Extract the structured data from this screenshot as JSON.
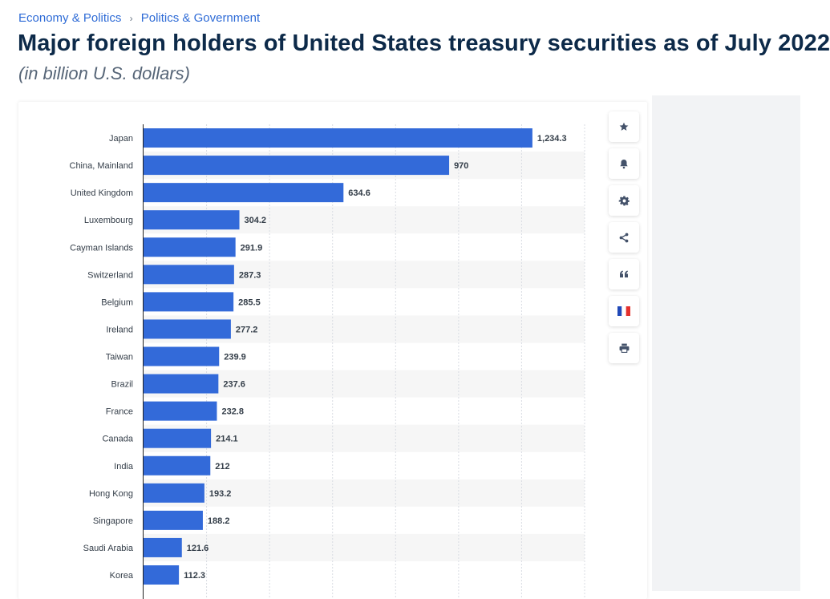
{
  "breadcrumb": [
    {
      "label": "Economy & Politics"
    },
    {
      "label": "Politics & Government"
    }
  ],
  "breadcrumb_separator": "›",
  "page_title": "Major foreign holders of United States treasury securities as of July 2022",
  "page_subtitle": "(in billion U.S. dollars)",
  "colors": {
    "bar": "#336ad9",
    "title": "#0d2a49",
    "link": "#2e6bd6",
    "stripe": "#f6f6f6"
  },
  "tools": [
    {
      "name": "favorite-star-icon"
    },
    {
      "name": "notification-bell-icon"
    },
    {
      "name": "settings-gear-icon"
    },
    {
      "name": "share-icon"
    },
    {
      "name": "citation-quote-icon"
    },
    {
      "name": "french-flag-icon"
    },
    {
      "name": "print-icon"
    }
  ],
  "chart_data": {
    "type": "bar",
    "orientation": "horizontal",
    "categories": [
      "Japan",
      "China, Mainland",
      "United Kingdom",
      "Luxembourg",
      "Cayman Islands",
      "Switzerland",
      "Belgium",
      "Ireland",
      "Taiwan",
      "Brazil",
      "France",
      "Canada",
      "India",
      "Hong Kong",
      "Singapore",
      "Saudi Arabia",
      "Korea"
    ],
    "values": [
      1234.3,
      970,
      634.6,
      304.2,
      291.9,
      287.3,
      285.5,
      277.2,
      239.9,
      237.6,
      232.8,
      214.1,
      212,
      193.2,
      188.2,
      121.6,
      112.3
    ],
    "value_labels": [
      "1,234.3",
      "970",
      "634.6",
      "304.2",
      "291.9",
      "287.3",
      "285.5",
      "277.2",
      "239.9",
      "237.6",
      "232.8",
      "214.1",
      "212",
      "193.2",
      "188.2",
      "121.6",
      "112.3"
    ],
    "xlim": [
      0,
      1400
    ],
    "grid_step": 200,
    "grid": true,
    "legend": "none"
  }
}
